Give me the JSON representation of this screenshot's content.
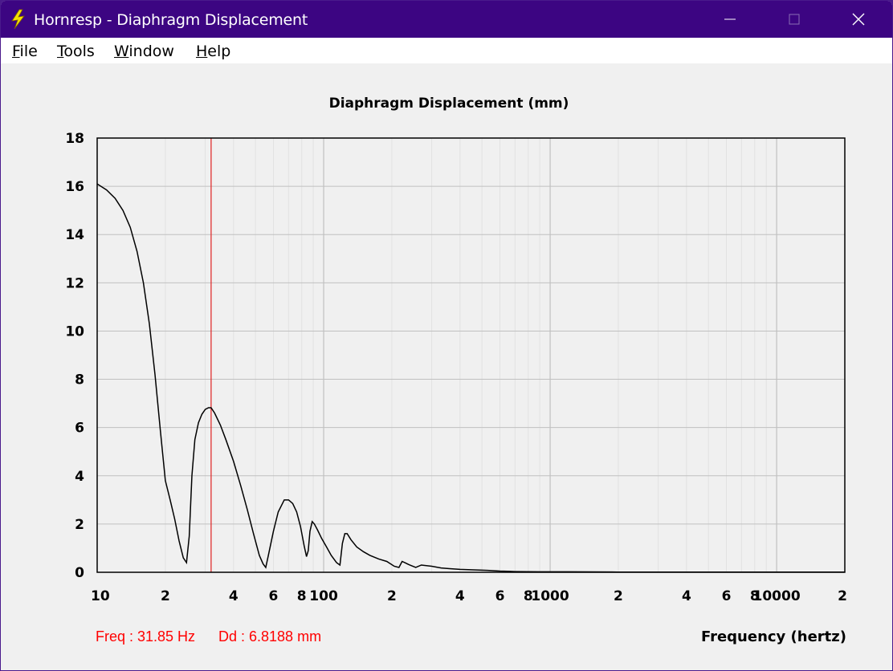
{
  "window": {
    "title": "Hornresp - Diaphragm Displacement",
    "minimize_glyph": "—",
    "maximize_glyph": "☐",
    "close_glyph": "✕"
  },
  "menu": [
    {
      "label": "File",
      "accel": "F",
      "rest": "ile"
    },
    {
      "label": "Tools",
      "accel": "T",
      "rest": "ools"
    },
    {
      "label": "Window",
      "accel": "W",
      "rest": "indow"
    },
    {
      "label": "Help",
      "accel": "H",
      "rest": "elp"
    }
  ],
  "readout": {
    "freq": "Freq : 31.85 Hz",
    "dd": "Dd : 6.8188 mm"
  },
  "colors": {
    "title_bar": "#3c0582",
    "trace": "#000000",
    "marker": "#e02020",
    "readout": "#ff0000",
    "grid_major": "#c0c0c0",
    "grid_minor": "#e2e2e2"
  },
  "chart_data": {
    "type": "line",
    "title": "Diaphragm Displacement (mm)",
    "xlabel": "Frequency (hertz)",
    "ylabel": "",
    "x_scale": "log",
    "xlim": [
      10,
      20000
    ],
    "ylim": [
      0,
      18
    ],
    "grid": true,
    "y_ticks": [
      0,
      2,
      4,
      6,
      8,
      10,
      12,
      14,
      16,
      18
    ],
    "x_ticks": [
      {
        "value": 10,
        "label": "10"
      },
      {
        "value": 20,
        "label": "2"
      },
      {
        "value": 40,
        "label": "4"
      },
      {
        "value": 60,
        "label": "6"
      },
      {
        "value": 80,
        "label": "8"
      },
      {
        "value": 100,
        "label": "100"
      },
      {
        "value": 200,
        "label": "2"
      },
      {
        "value": 400,
        "label": "4"
      },
      {
        "value": 600,
        "label": "6"
      },
      {
        "value": 800,
        "label": "8"
      },
      {
        "value": 1000,
        "label": "1000"
      },
      {
        "value": 2000,
        "label": "2"
      },
      {
        "value": 4000,
        "label": "4"
      },
      {
        "value": 6000,
        "label": "6"
      },
      {
        "value": 8000,
        "label": "8"
      },
      {
        "value": 10000,
        "label": "10000"
      },
      {
        "value": 20000,
        "label": "2"
      }
    ],
    "marker_x": 31.85,
    "series": [
      {
        "x": [
          10,
          11,
          12,
          13,
          14,
          15,
          16,
          17,
          18,
          19,
          20,
          21,
          22,
          23,
          24,
          24.8,
          25.5,
          26.2,
          27,
          28,
          29,
          30,
          31,
          31.85,
          33,
          35,
          37,
          40,
          43,
          46,
          49,
          52,
          54,
          55.5,
          57,
          60,
          63,
          67,
          70,
          73,
          76,
          79,
          82,
          84,
          85.5,
          87,
          89,
          91,
          94,
          98,
          103,
          108,
          114,
          118,
          121,
          124,
          127,
          132,
          140,
          150,
          160,
          175,
          190,
          205,
          215,
          222,
          228,
          240,
          255,
          270,
          300,
          330,
          360,
          400,
          460,
          530,
          600,
          700,
          900,
          1200,
          2000,
          5000,
          10000,
          20000
        ],
        "values": [
          16.1,
          15.85,
          15.5,
          15.0,
          14.3,
          13.3,
          12.0,
          10.3,
          8.2,
          5.9,
          3.8,
          3.0,
          2.2,
          1.3,
          0.6,
          0.4,
          1.5,
          4.0,
          5.5,
          6.2,
          6.55,
          6.75,
          6.82,
          6.82,
          6.6,
          6.1,
          5.5,
          4.6,
          3.6,
          2.6,
          1.6,
          0.7,
          0.35,
          0.2,
          0.7,
          1.7,
          2.5,
          3.0,
          3.0,
          2.85,
          2.5,
          1.9,
          1.1,
          0.65,
          0.9,
          1.7,
          2.1,
          2.0,
          1.75,
          1.4,
          1.05,
          0.7,
          0.4,
          0.3,
          1.2,
          1.6,
          1.6,
          1.35,
          1.05,
          0.85,
          0.7,
          0.55,
          0.45,
          0.25,
          0.2,
          0.45,
          0.4,
          0.3,
          0.2,
          0.3,
          0.25,
          0.18,
          0.15,
          0.12,
          0.1,
          0.08,
          0.05,
          0.03,
          0.02,
          0.02,
          0.01,
          0.01,
          0.01,
          0.01
        ]
      }
    ]
  }
}
